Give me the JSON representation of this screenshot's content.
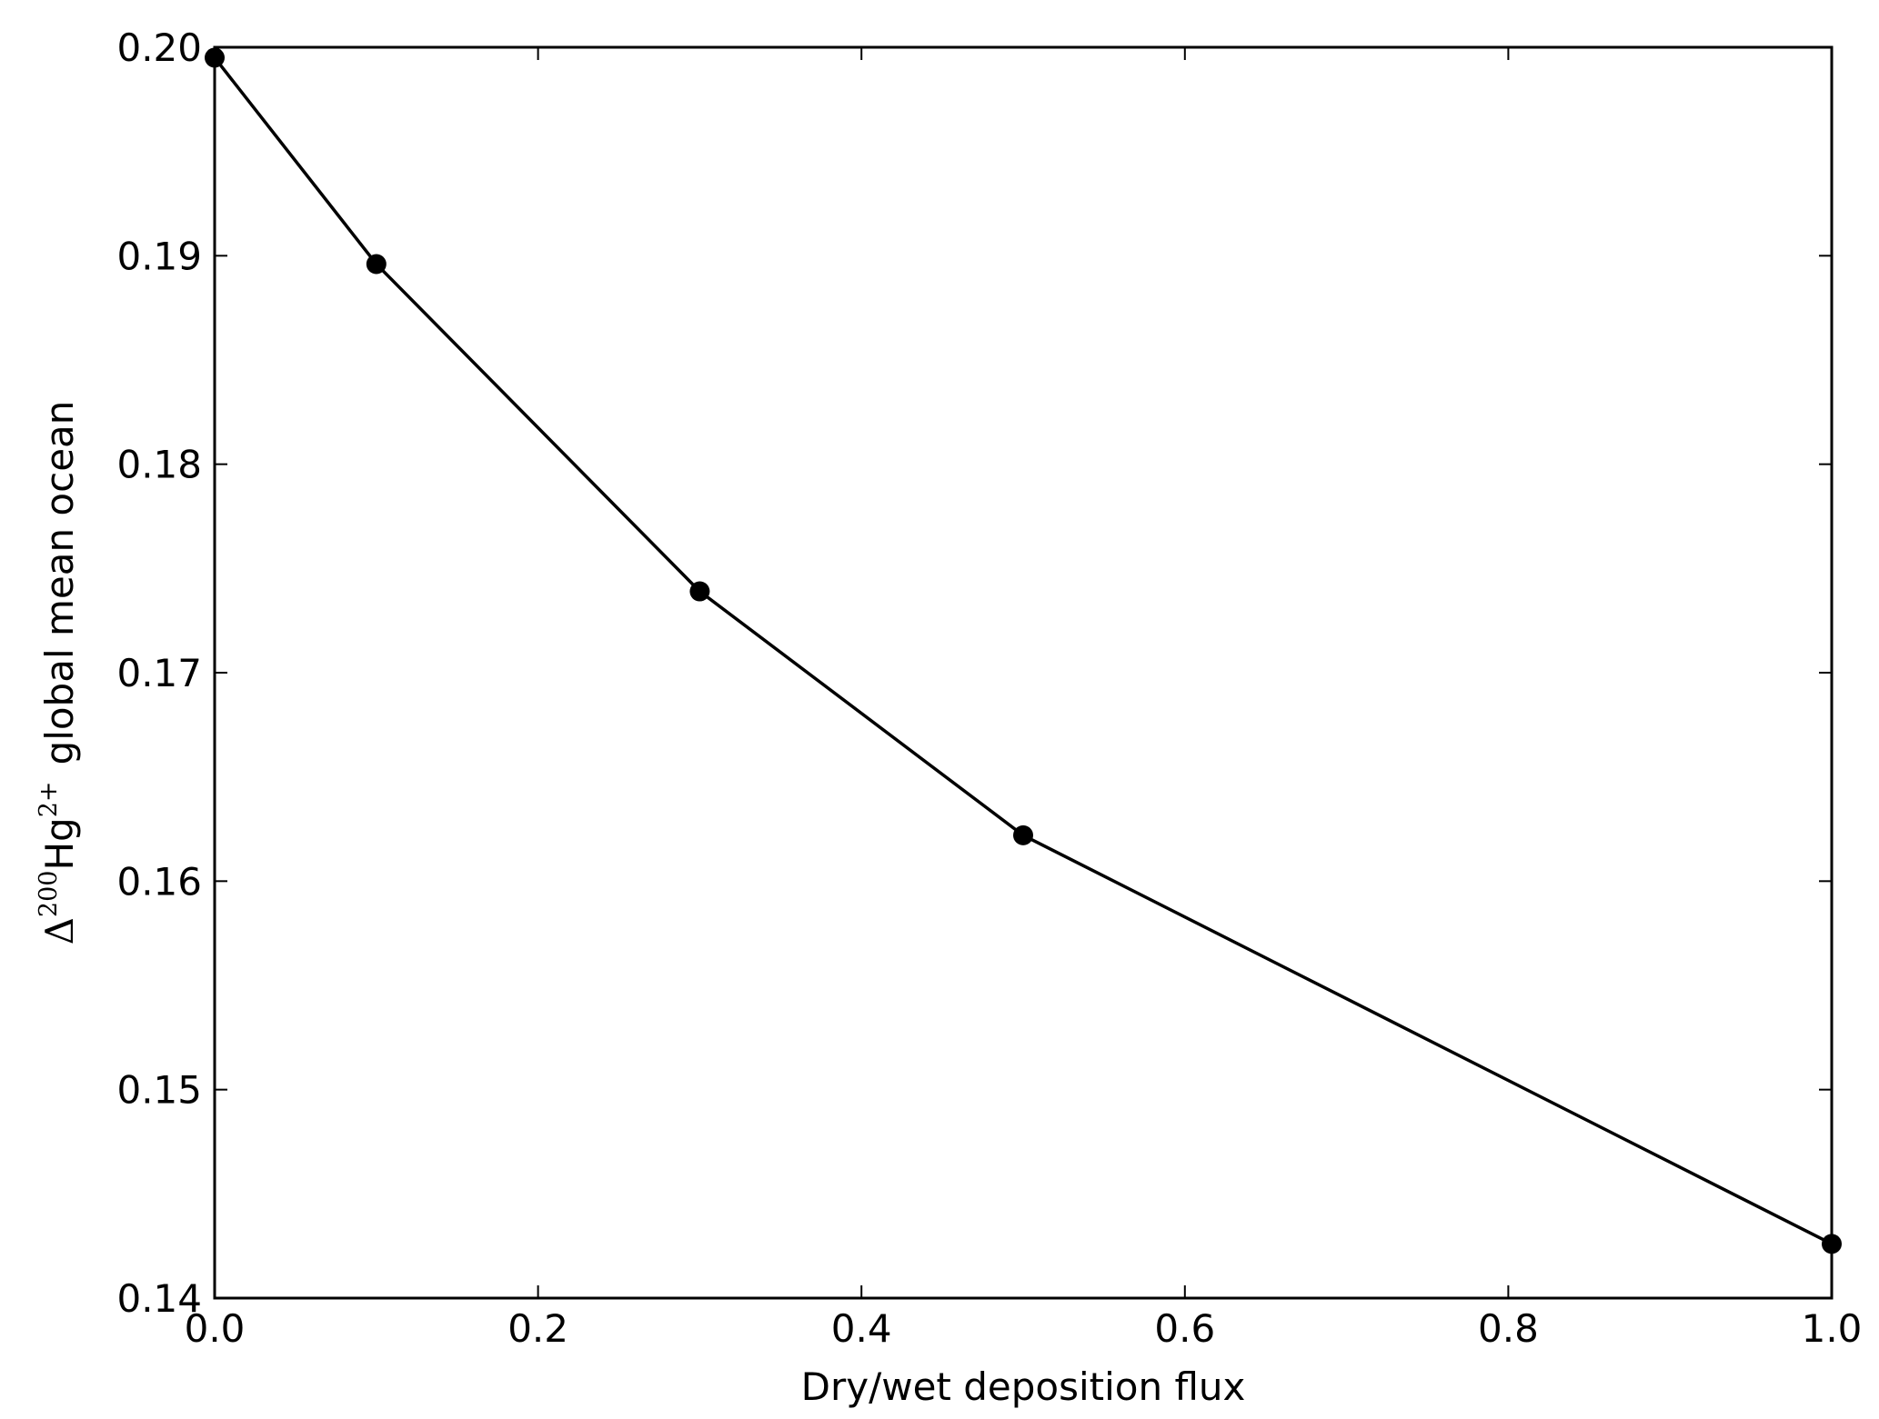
{
  "chart_data": {
    "type": "line",
    "title": "",
    "xlabel": "Dry/wet deposition flux",
    "ylabel": {
      "delta": "Δ",
      "isotope": "200",
      "element": "Hg",
      "charge": "2+",
      "rest": "global mean ocean"
    },
    "xlim": [
      0.0,
      1.0
    ],
    "ylim": [
      0.14,
      0.2
    ],
    "x_ticks": [
      "0.0",
      "0.2",
      "0.4",
      "0.6",
      "0.8",
      "1.0"
    ],
    "y_ticks": [
      "0.14",
      "0.15",
      "0.16",
      "0.17",
      "0.18",
      "0.19",
      "0.20"
    ],
    "grid": false,
    "legend": "none",
    "series": [
      {
        "x": [
          0.0,
          0.1,
          0.3,
          0.5,
          1.0
        ],
        "y": [
          0.1995,
          0.1896,
          0.1739,
          0.1622,
          0.1426
        ],
        "color": "#000000",
        "marker": "circle"
      }
    ]
  }
}
